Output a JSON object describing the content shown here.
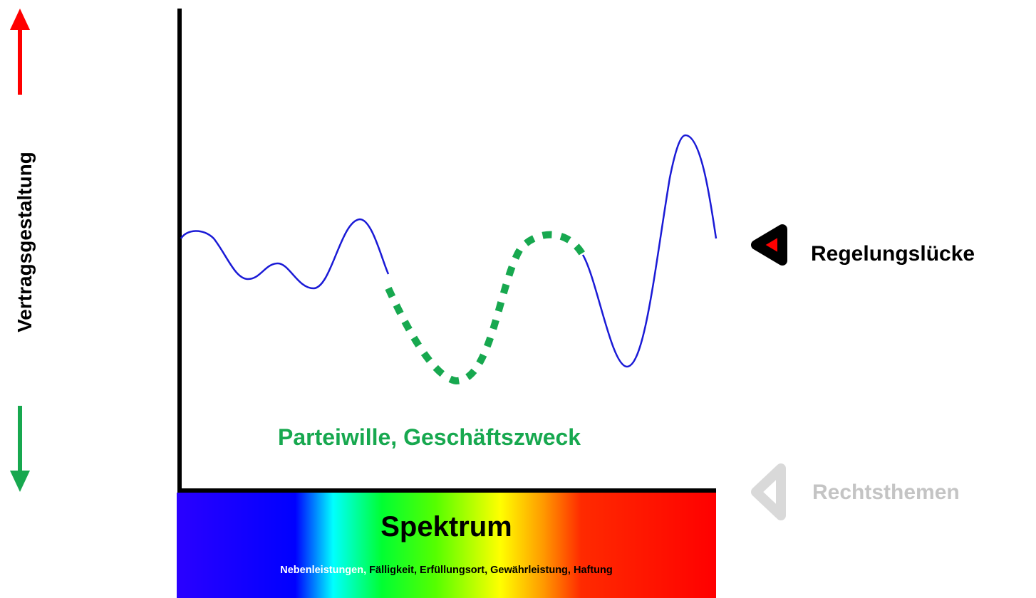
{
  "vertical_label": "Vertragsgestaltung",
  "curve_label": "Parteiwille, Geschäftszweck",
  "spectrum": {
    "title": "Spektrum",
    "subtitle_first": "Nebenleistungen,",
    "subtitle_rest": " Fälligkeit, Erfüllungsort, Gewährleistung, Haftung"
  },
  "legend": {
    "gap": "Regelungslücke",
    "topics": "Rechtsthemen"
  },
  "colors": {
    "curve": "#1a1ad6",
    "gap_curve": "#17a84f",
    "arrow_up": "#ff0000",
    "arrow_down": "#17a84f",
    "gap_marker": "#ff0000",
    "topics_marker": "#d9d9d9"
  },
  "icons": {
    "up": "red-up-arrow",
    "down": "green-down-arrow",
    "gap": "gap-triangle-marker",
    "topics": "topics-triangle-marker"
  }
}
